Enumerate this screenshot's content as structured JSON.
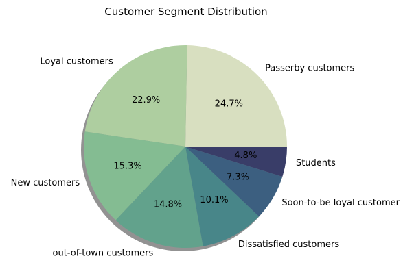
{
  "chart_data": {
    "type": "pie",
    "title": "Customer Segment Distribution",
    "categories": [
      "Passerby customers",
      "Loyal customers",
      "New customers",
      "out-of-town customers",
      "Dissatisfied customers",
      "Soon-to-be loyal customer",
      "Students"
    ],
    "values": [
      24.7,
      22.9,
      15.3,
      14.8,
      10.1,
      7.3,
      4.8
    ],
    "value_labels": [
      "24.7%",
      "22.9%",
      "15.3%",
      "14.8%",
      "10.1%",
      "7.3%",
      "4.8%"
    ],
    "colors": [
      "#d8dfc0",
      "#aecea0",
      "#84bc92",
      "#62a28c",
      "#488689",
      "#3c5f80",
      "#393d68"
    ],
    "start_angle_deg": 0,
    "direction": "counterclockwise",
    "shadow": true,
    "legend": "none"
  }
}
